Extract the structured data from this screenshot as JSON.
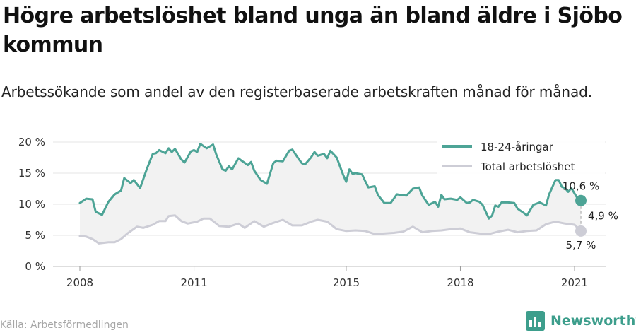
{
  "title": "Högre arbetslöshet bland unga än bland äldre i Sjöbo kommun",
  "subtitle": "Arbetssökande som andel av den registerbaserade arbetskraften månad för månad.",
  "source": "Källa: Arbetsförmedlingen",
  "brand": {
    "name": "Newsworthy",
    "icon": "newsworthy-logo-icon"
  },
  "colors": {
    "youth": "#4da496",
    "total": "#cdcdd6",
    "fill": "#f2f2f2",
    "grid": "#e2e2e2",
    "brand": "#3d9e8c"
  },
  "chart_data": {
    "type": "line",
    "x_ticks": [
      "2008",
      "2011",
      "2015",
      "2018",
      "2021"
    ],
    "y_ticks": [
      "0 %",
      "5 %",
      "10 %",
      "15 %",
      "20 %"
    ],
    "ylim": [
      0,
      20
    ],
    "xlim": [
      "2008-01",
      "2021-03"
    ],
    "grid": true,
    "legend_position": "top-right",
    "series": [
      {
        "name": "18-24-åringar",
        "color": "#4da496",
        "points": [
          [
            "2008-01",
            10.2
          ],
          [
            "2008-03",
            10.9
          ],
          [
            "2008-05",
            10.8
          ],
          [
            "2008-06",
            8.8
          ],
          [
            "2008-08",
            8.3
          ],
          [
            "2008-10",
            10.4
          ],
          [
            "2008-12",
            11.6
          ],
          [
            "2009-02",
            12.2
          ],
          [
            "2009-03",
            14.2
          ],
          [
            "2009-05",
            13.4
          ],
          [
            "2009-06",
            13.9
          ],
          [
            "2009-08",
            12.6
          ],
          [
            "2009-10",
            15.5
          ],
          [
            "2009-12",
            18.1
          ],
          [
            "2010-01",
            18.2
          ],
          [
            "2010-02",
            18.7
          ],
          [
            "2010-04",
            18.2
          ],
          [
            "2010-05",
            19.0
          ],
          [
            "2010-06",
            18.4
          ],
          [
            "2010-07",
            18.9
          ],
          [
            "2010-09",
            17.2
          ],
          [
            "2010-10",
            16.7
          ],
          [
            "2010-12",
            18.5
          ],
          [
            "2011-01",
            18.7
          ],
          [
            "2011-02",
            18.4
          ],
          [
            "2011-03",
            19.7
          ],
          [
            "2011-05",
            19.0
          ],
          [
            "2011-07",
            19.6
          ],
          [
            "2011-08",
            18.0
          ],
          [
            "2011-10",
            15.6
          ],
          [
            "2011-11",
            15.4
          ],
          [
            "2011-12",
            16.1
          ],
          [
            "2012-01",
            15.6
          ],
          [
            "2012-03",
            17.4
          ],
          [
            "2012-04",
            17.0
          ],
          [
            "2012-06",
            16.3
          ],
          [
            "2012-07",
            16.8
          ],
          [
            "2012-08",
            15.4
          ],
          [
            "2012-10",
            13.9
          ],
          [
            "2012-12",
            13.3
          ],
          [
            "2013-02",
            16.6
          ],
          [
            "2013-03",
            17.0
          ],
          [
            "2013-05",
            16.9
          ],
          [
            "2013-07",
            18.6
          ],
          [
            "2013-08",
            18.8
          ],
          [
            "2013-10",
            17.3
          ],
          [
            "2013-11",
            16.6
          ],
          [
            "2013-12",
            16.4
          ],
          [
            "2014-02",
            17.6
          ],
          [
            "2014-03",
            18.4
          ],
          [
            "2014-04",
            17.8
          ],
          [
            "2014-06",
            18.1
          ],
          [
            "2014-07",
            17.4
          ],
          [
            "2014-08",
            18.6
          ],
          [
            "2014-10",
            17.5
          ],
          [
            "2014-12",
            14.8
          ],
          [
            "2015-01",
            13.6
          ],
          [
            "2015-02",
            15.6
          ],
          [
            "2015-03",
            14.9
          ],
          [
            "2015-04",
            15.0
          ],
          [
            "2015-06",
            14.8
          ],
          [
            "2015-07",
            13.7
          ],
          [
            "2015-08",
            12.7
          ],
          [
            "2015-10",
            12.9
          ],
          [
            "2015-11",
            11.5
          ],
          [
            "2016-01",
            10.2
          ],
          [
            "2016-03",
            10.2
          ],
          [
            "2016-05",
            11.6
          ],
          [
            "2016-06",
            11.5
          ],
          [
            "2016-08",
            11.4
          ],
          [
            "2016-10",
            12.5
          ],
          [
            "2016-12",
            12.7
          ],
          [
            "2017-01",
            11.4
          ],
          [
            "2017-03",
            9.9
          ],
          [
            "2017-05",
            10.4
          ],
          [
            "2017-06",
            9.6
          ],
          [
            "2017-07",
            11.5
          ],
          [
            "2017-08",
            10.8
          ],
          [
            "2017-10",
            10.9
          ],
          [
            "2017-12",
            10.7
          ],
          [
            "2018-01",
            11.1
          ],
          [
            "2018-03",
            10.2
          ],
          [
            "2018-04",
            10.3
          ],
          [
            "2018-05",
            10.7
          ],
          [
            "2018-07",
            10.4
          ],
          [
            "2018-08",
            9.9
          ],
          [
            "2018-10",
            7.7
          ],
          [
            "2018-11",
            8.2
          ],
          [
            "2018-12",
            9.8
          ],
          [
            "2019-01",
            9.6
          ],
          [
            "2019-02",
            10.3
          ],
          [
            "2019-04",
            10.3
          ],
          [
            "2019-06",
            10.2
          ],
          [
            "2019-07",
            9.3
          ],
          [
            "2019-09",
            8.6
          ],
          [
            "2019-10",
            8.2
          ],
          [
            "2019-12",
            9.9
          ],
          [
            "2020-02",
            10.3
          ],
          [
            "2020-04",
            9.8
          ],
          [
            "2020-05",
            11.6
          ],
          [
            "2020-07",
            13.9
          ],
          [
            "2020-08",
            13.9
          ],
          [
            "2020-09",
            12.8
          ],
          [
            "2020-10",
            12.6
          ],
          [
            "2020-11",
            12.0
          ],
          [
            "2020-12",
            12.6
          ],
          [
            "2021-02",
            10.9
          ],
          [
            "2021-03",
            10.6
          ]
        ]
      },
      {
        "name": "Total arbetslöshet",
        "color": "#cdcdd6",
        "points": [
          [
            "2008-01",
            4.9
          ],
          [
            "2008-03",
            4.8
          ],
          [
            "2008-05",
            4.4
          ],
          [
            "2008-07",
            3.7
          ],
          [
            "2008-10",
            3.9
          ],
          [
            "2008-12",
            3.9
          ],
          [
            "2009-02",
            4.4
          ],
          [
            "2009-04",
            5.3
          ],
          [
            "2009-07",
            6.4
          ],
          [
            "2009-09",
            6.2
          ],
          [
            "2009-12",
            6.7
          ],
          [
            "2010-02",
            7.3
          ],
          [
            "2010-04",
            7.3
          ],
          [
            "2010-05",
            8.1
          ],
          [
            "2010-07",
            8.2
          ],
          [
            "2010-09",
            7.3
          ],
          [
            "2010-11",
            6.9
          ],
          [
            "2011-02",
            7.2
          ],
          [
            "2011-04",
            7.7
          ],
          [
            "2011-06",
            7.7
          ],
          [
            "2011-09",
            6.5
          ],
          [
            "2011-12",
            6.4
          ],
          [
            "2012-03",
            6.9
          ],
          [
            "2012-05",
            6.2
          ],
          [
            "2012-08",
            7.3
          ],
          [
            "2012-11",
            6.4
          ],
          [
            "2013-02",
            7.0
          ],
          [
            "2013-05",
            7.5
          ],
          [
            "2013-08",
            6.6
          ],
          [
            "2013-11",
            6.6
          ],
          [
            "2014-02",
            7.2
          ],
          [
            "2014-04",
            7.5
          ],
          [
            "2014-07",
            7.2
          ],
          [
            "2014-10",
            6.0
          ],
          [
            "2015-01",
            5.7
          ],
          [
            "2015-04",
            5.8
          ],
          [
            "2015-07",
            5.7
          ],
          [
            "2015-10",
            5.2
          ],
          [
            "2016-01",
            5.3
          ],
          [
            "2016-04",
            5.4
          ],
          [
            "2016-07",
            5.6
          ],
          [
            "2016-10",
            6.4
          ],
          [
            "2017-01",
            5.5
          ],
          [
            "2017-04",
            5.7
          ],
          [
            "2017-07",
            5.8
          ],
          [
            "2017-10",
            6.0
          ],
          [
            "2018-01",
            6.1
          ],
          [
            "2018-04",
            5.5
          ],
          [
            "2018-07",
            5.3
          ],
          [
            "2018-10",
            5.2
          ],
          [
            "2019-01",
            5.6
          ],
          [
            "2019-04",
            5.9
          ],
          [
            "2019-07",
            5.5
          ],
          [
            "2019-10",
            5.7
          ],
          [
            "2020-01",
            5.8
          ],
          [
            "2020-04",
            6.8
          ],
          [
            "2020-07",
            7.2
          ],
          [
            "2020-10",
            6.9
          ],
          [
            "2021-01",
            6.7
          ],
          [
            "2021-03",
            5.7
          ]
        ]
      }
    ],
    "annotations": {
      "youth_end": "10,6 %",
      "total_end": "5,7 %",
      "gap": "4,9 %"
    }
  }
}
